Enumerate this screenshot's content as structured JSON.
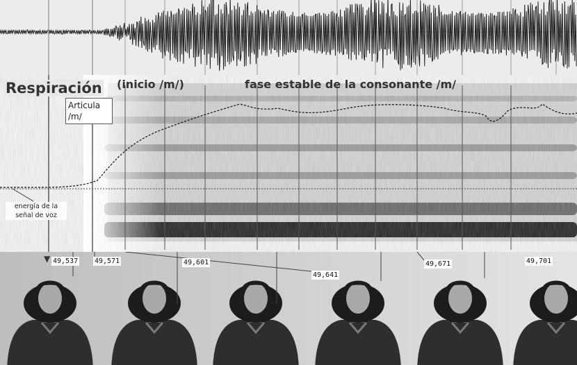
{
  "labels": {
    "breathing": "Respiración",
    "onset": "(inicio /m/)",
    "steady_phase": "fase estable de la consonante /m/",
    "articulation": "Articula /m/",
    "energy": "energía de la señal de voz"
  },
  "timestamps": [
    "49,537",
    "49,571",
    "49,601",
    "49,641",
    "49,671",
    "49,701"
  ],
  "colors": {
    "waveform": "#1a1a1a",
    "spectrogram_dark": "#111111",
    "guide_line": "#333333"
  },
  "icons": {
    "cursor": "down-arrow-icon"
  }
}
